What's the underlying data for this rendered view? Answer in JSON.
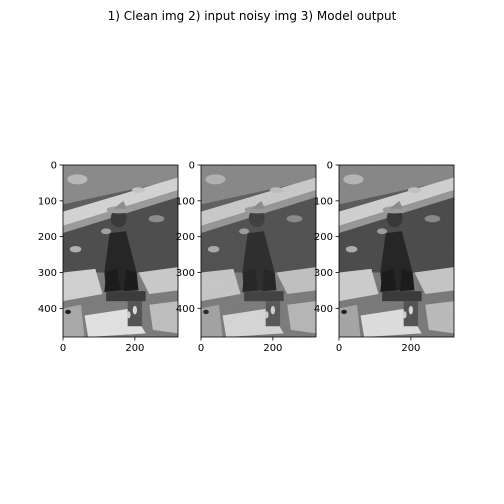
{
  "figure": {
    "suptitle": "1) Clean img 2) input noisy img  3) Model output"
  },
  "chart_data": [
    {
      "type": "image",
      "panel": "1) Clean img",
      "xlim": [
        0,
        320
      ],
      "ylim": [
        480,
        0
      ],
      "xticks": [
        0,
        200
      ],
      "yticks": [
        0,
        100,
        200,
        300,
        400
      ],
      "grid": false,
      "colormap": "gray",
      "noise": 0
    },
    {
      "type": "image",
      "panel": "2) input noisy img",
      "xlim": [
        0,
        320
      ],
      "ylim": [
        480,
        0
      ],
      "xticks": [
        0,
        200
      ],
      "yticks": [
        0,
        100,
        200,
        300,
        400
      ],
      "grid": false,
      "colormap": "gray",
      "noise": 0.35
    },
    {
      "type": "image",
      "panel": "3) Model output",
      "xlim": [
        0,
        320
      ],
      "ylim": [
        480,
        0
      ],
      "xticks": [
        0,
        200
      ],
      "yticks": [
        0,
        100,
        200,
        300,
        400
      ],
      "grid": false,
      "colormap": "gray",
      "noise": 0.08
    }
  ]
}
